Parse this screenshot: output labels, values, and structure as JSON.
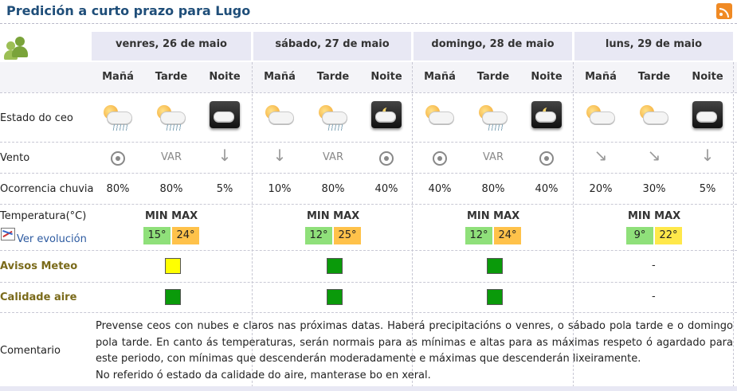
{
  "title": "Predición a curto prazo para Lugo",
  "days": [
    {
      "label": "venres, 26 de maio"
    },
    {
      "label": "sábado, 27 de maio"
    },
    {
      "label": "domingo, 28 de maio"
    },
    {
      "label": "luns, 29 de maio"
    }
  ],
  "periods": [
    "Mañá",
    "Tarde",
    "Noite"
  ],
  "rows": {
    "sky": "Estado do ceo",
    "wind": "Vento",
    "rain": "Ocorrencia chuvia",
    "temp": "Temperatura(°C)",
    "evolution": "Ver evolución",
    "warnings": "Avisos Meteo",
    "air": "Calidade aire",
    "comment": "Comentario"
  },
  "sky_icons": [
    [
      "cloudy-sun-rain-icon",
      "cloudy-sun-rain-icon",
      "night-cloud-icon"
    ],
    [
      "cloudy-sun-icon",
      "cloudy-sun-rain-icon",
      "night-moon-cloud-icon"
    ],
    [
      "cloudy-sun-icon",
      "cloudy-sun-rain-icon",
      "night-moon-cloud-icon"
    ],
    [
      "cloudy-sun-icon",
      "cloudy-sun-icon",
      "night-cloud-icon"
    ]
  ],
  "wind": [
    [
      "calm",
      "VAR",
      "north"
    ],
    [
      "north",
      "VAR",
      "calm"
    ],
    [
      "calm",
      "VAR",
      "calm"
    ],
    [
      "northwest",
      "northwest",
      "north"
    ]
  ],
  "var_label": "VAR",
  "rain": [
    [
      "80%",
      "80%",
      "5%"
    ],
    [
      "10%",
      "80%",
      "40%"
    ],
    [
      "40%",
      "80%",
      "40%"
    ],
    [
      "20%",
      "30%",
      "5%"
    ]
  ],
  "minmax_label": "MIN MAX",
  "temps": [
    {
      "min": "15°",
      "max": "24°"
    },
    {
      "min": "12°",
      "max": "25°"
    },
    {
      "min": "12°",
      "max": "24°"
    },
    {
      "min": "9°",
      "max": "22°"
    }
  ],
  "warnings": [
    "yellow",
    "green",
    "green",
    "-"
  ],
  "air_quality": [
    "green",
    "green",
    "green",
    "-"
  ],
  "colors": {
    "yellow": "#ffff00",
    "green": "#0a9a0a",
    "accent": "#1f4e79",
    "olive": "#7a6a1a"
  },
  "comment_lines": [
    "Prevense ceos con nubes e claros nas próximas datas. Haberá precipitacións o venres, o sábado pola tarde e o domingo pola tarde. En canto ás temperaturas, serán normais para as mínimas e altas para as máximas respeto ó agardado para este periodo, con mínimas que descenderán moderadamente e máximas que descenderán lixeiramente.",
    "No referido ó estado da calidade do aire, manterase bo en xeral."
  ]
}
